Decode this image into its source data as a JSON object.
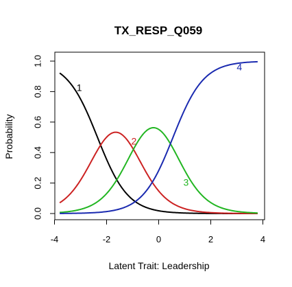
{
  "chart_data": {
    "type": "line",
    "title": "TX_RESP_Q059",
    "xlabel": "Latent Trait: Leadership",
    "ylabel": "Probability",
    "xlim": [
      -3.8,
      3.8
    ],
    "ylim": [
      0,
      1
    ],
    "x_ticks": [
      "-4",
      "-2",
      "0",
      "2",
      "4"
    ],
    "y_ticks": [
      "0.0",
      "0.2",
      "0.4",
      "0.6",
      "0.8",
      "1.0"
    ],
    "grid": false,
    "legend": "none",
    "model": {
      "a": 1.7,
      "thresholds": [
        -2.35,
        -0.95,
        0.55
      ]
    },
    "series": [
      {
        "label": "1",
        "color": "#000000",
        "label_x": -3.05,
        "label_y": 0.82
      },
      {
        "label": "2",
        "color": "#cc2222",
        "label_x": -0.95,
        "label_y": 0.47
      },
      {
        "label": "3",
        "color": "#22b622",
        "label_x": 1.05,
        "label_y": 0.2
      },
      {
        "label": "4",
        "color": "#1a2ab0",
        "label_x": 3.1,
        "label_y": 0.955
      }
    ]
  }
}
